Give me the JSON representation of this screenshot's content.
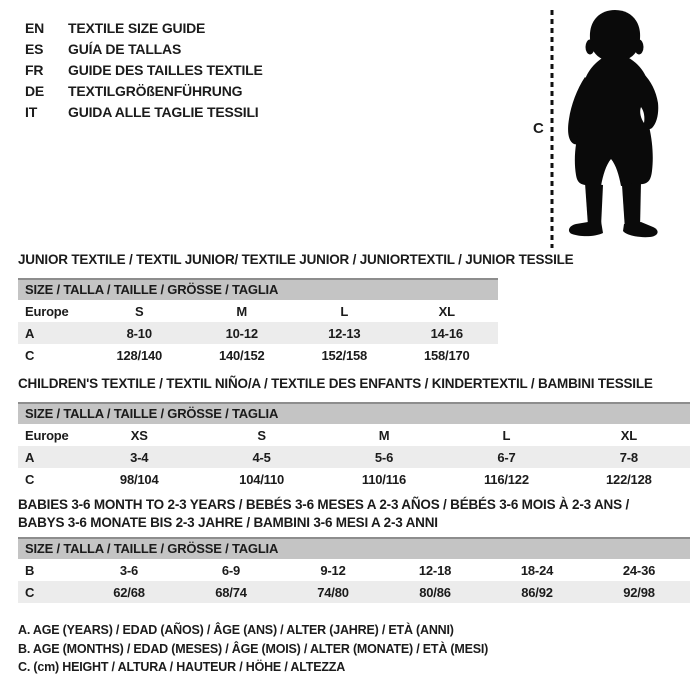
{
  "header": {
    "languages": [
      {
        "code": "EN",
        "label": "TEXTILE SIZE GUIDE"
      },
      {
        "code": "ES",
        "label": "GUÍA DE TALLAS"
      },
      {
        "code": "FR",
        "label": "GUIDE DES TAILLES TEXTILE"
      },
      {
        "code": "DE",
        "label": "TEXTILGRÖßENFÜHRUNG"
      },
      {
        "code": "IT",
        "label": "GUIDA ALLE TAGLIE TESSILI"
      }
    ]
  },
  "figure": {
    "icon": "baby-silhouette",
    "measure_label": "C"
  },
  "tables": [
    {
      "title": "JUNIOR TEXTILE / TEXTIL JUNIOR/ TEXTILE JUNIOR / JUNIORTEXTIL / JUNIOR TESSILE",
      "header": "SIZE / TALLA / TAILLE / GRÖSSE / TAGLIA",
      "rows": [
        {
          "label": "Europe",
          "values": [
            "S",
            "M",
            "L",
            "XL"
          ],
          "shaded": false
        },
        {
          "label": "A",
          "values": [
            "8-10",
            "10-12",
            "12-13",
            "14-16"
          ],
          "shaded": true
        },
        {
          "label": "C",
          "values": [
            "128/140",
            "140/152",
            "152/158",
            "158/170"
          ],
          "shaded": false
        }
      ]
    },
    {
      "title": "CHILDREN'S TEXTILE / TEXTIL NIÑO/A / TEXTILE DES ENFANTS / KINDERTEXTIL / BAMBINI TESSILE",
      "header": "SIZE / TALLA / TAILLE / GRÖSSE / TAGLIA",
      "rows": [
        {
          "label": "Europe",
          "values": [
            "XS",
            "S",
            "M",
            "L",
            "XL"
          ],
          "shaded": false
        },
        {
          "label": "A",
          "values": [
            "3-4",
            "4-5",
            "5-6",
            "6-7",
            "7-8"
          ],
          "shaded": true
        },
        {
          "label": "C",
          "values": [
            "98/104",
            "104/110",
            "110/116",
            "116/122",
            "122/128"
          ],
          "shaded": false
        }
      ]
    },
    {
      "title": "BABIES 3-6 MONTH TO 2-3 YEARS / BEBÉS 3-6 MESES A 2-3 AÑOS / BÉBÉS 3-6 MOIS À 2-3 ANS /\nBABYS 3-6 MONATE BIS 2-3 JAHRE / BAMBINI 3-6 MESI A 2-3 ANNI",
      "header": "SIZE / TALLA / TAILLE / GRÖSSE / TAGLIA",
      "rows": [
        {
          "label": "B",
          "values": [
            "3-6",
            "6-9",
            "9-12",
            "12-18",
            "18-24",
            "24-36"
          ],
          "shaded": false
        },
        {
          "label": "C",
          "values": [
            "62/68",
            "68/74",
            "74/80",
            "80/86",
            "86/92",
            "92/98"
          ],
          "shaded": true
        }
      ]
    }
  ],
  "footnotes": [
    "A. AGE (YEARS) / EDAD (AÑOS) / ÂGE (ANS) / ALTER (JAHRE) / ETÀ (ANNI)",
    "B. AGE (MONTHS) / EDAD (MESES) / ÂGE (MOIS) / ALTER (MONATE) / ETÀ (MESI)",
    "C. (cm) HEIGHT / ALTURA / HAUTEUR / HÖHE / ALTEZZA"
  ],
  "colors": {
    "table_header_bg": "#c4c4c4",
    "table_header_border": "#8d8d8d",
    "row_shaded_bg": "#ececec",
    "silhouette": "#0a0a0a",
    "text": "#1b1b1b"
  }
}
